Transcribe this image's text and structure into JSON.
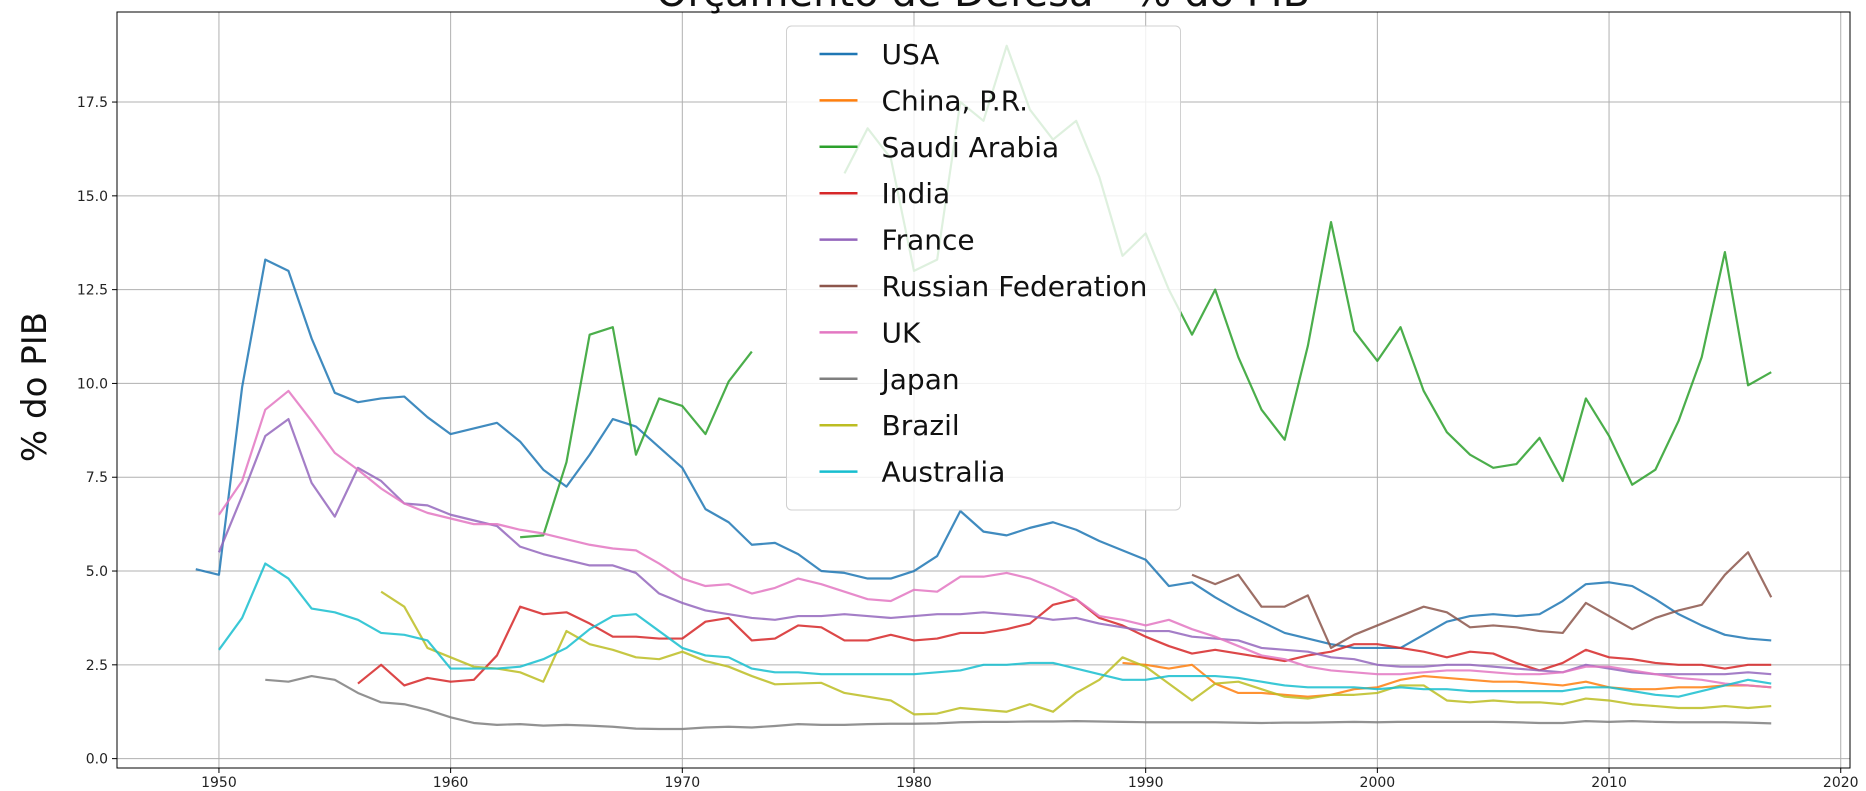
{
  "chart_data": {
    "type": "line",
    "title": "Orçamento de Defesa - % do PIB",
    "ylabel": "% do PIB",
    "grid": true,
    "legend": "upper center",
    "xlim": [
      1945.6,
      2020.4
    ],
    "ylim": [
      -0.25,
      19.9
    ],
    "xticks": [
      1950,
      1960,
      1970,
      1980,
      1990,
      2000,
      2010,
      2020
    ],
    "yticks": [
      {
        "value": 0,
        "label": "0.0"
      },
      {
        "value": 2.5,
        "label": "2.5"
      },
      {
        "value": 5,
        "label": "5.0"
      },
      {
        "value": 7.5,
        "label": "7.5"
      },
      {
        "value": 10,
        "label": "10.0"
      },
      {
        "value": 12.5,
        "label": "12.5"
      },
      {
        "value": 15,
        "label": "15.0"
      },
      {
        "value": 17.5,
        "label": "17.5"
      }
    ],
    "x": [
      1949,
      1950,
      1951,
      1952,
      1953,
      1954,
      1955,
      1956,
      1957,
      1958,
      1959,
      1960,
      1961,
      1962,
      1963,
      1964,
      1965,
      1966,
      1967,
      1968,
      1969,
      1970,
      1971,
      1972,
      1973,
      1974,
      1975,
      1976,
      1977,
      1978,
      1979,
      1980,
      1981,
      1982,
      1983,
      1984,
      1985,
      1986,
      1987,
      1988,
      1989,
      1990,
      1991,
      1992,
      1993,
      1994,
      1995,
      1996,
      1997,
      1998,
      1999,
      2000,
      2001,
      2002,
      2003,
      2004,
      2005,
      2006,
      2007,
      2008,
      2009,
      2010,
      2011,
      2012,
      2013,
      2014,
      2015,
      2016,
      2017
    ],
    "series": [
      {
        "name": "USA",
        "color": "#1f77b4",
        "values": [
          5.05,
          4.9,
          9.9,
          13.3,
          13.0,
          11.2,
          9.75,
          9.5,
          9.6,
          9.65,
          9.1,
          8.65,
          8.8,
          8.95,
          8.45,
          7.7,
          7.25,
          8.1,
          9.05,
          8.85,
          8.3,
          7.75,
          6.65,
          6.3,
          5.7,
          5.75,
          5.45,
          5.0,
          4.95,
          4.8,
          4.8,
          5.0,
          5.4,
          6.6,
          6.05,
          5.95,
          6.15,
          6.3,
          6.1,
          5.8,
          5.55,
          5.3,
          4.6,
          4.7,
          4.3,
          3.95,
          3.65,
          3.35,
          3.2,
          3.05,
          2.95,
          2.95,
          2.95,
          3.3,
          3.65,
          3.8,
          3.85,
          3.8,
          3.85,
          4.2,
          4.65,
          4.7,
          4.6,
          4.25,
          3.85,
          3.55,
          3.3,
          3.2,
          3.15
        ]
      },
      {
        "name": "China, P.R.",
        "color": "#ff7f0e",
        "values": [
          null,
          null,
          null,
          null,
          null,
          null,
          null,
          null,
          null,
          null,
          null,
          null,
          null,
          null,
          null,
          null,
          null,
          null,
          null,
          null,
          null,
          null,
          null,
          null,
          null,
          null,
          null,
          null,
          null,
          null,
          null,
          null,
          null,
          null,
          null,
          null,
          null,
          null,
          null,
          null,
          2.55,
          2.5,
          2.4,
          2.5,
          2.0,
          1.75,
          1.75,
          1.7,
          1.65,
          1.7,
          1.85,
          1.9,
          2.1,
          2.2,
          2.15,
          2.1,
          2.05,
          2.05,
          2.0,
          1.95,
          2.05,
          1.9,
          1.85,
          1.85,
          1.9,
          1.9,
          1.95,
          1.95,
          1.9
        ]
      },
      {
        "name": "Saudi Arabia",
        "color": "#2ca02c",
        "values": [
          null,
          null,
          null,
          null,
          null,
          null,
          null,
          null,
          null,
          null,
          null,
          null,
          null,
          null,
          5.9,
          5.95,
          7.9,
          11.3,
          11.5,
          8.1,
          9.6,
          9.4,
          8.65,
          10.05,
          10.85,
          null,
          null,
          null,
          15.6,
          16.8,
          16.0,
          13.0,
          13.3,
          17.5,
          17.0,
          19.0,
          17.3,
          16.5,
          17.0,
          15.5,
          13.4,
          14.0,
          12.5,
          11.3,
          12.5,
          10.7,
          9.3,
          8.5,
          11.0,
          14.3,
          11.4,
          10.6,
          11.5,
          9.8,
          8.7,
          8.1,
          7.75,
          7.85,
          8.55,
          7.4,
          9.6,
          8.6,
          7.3,
          7.7,
          9.0,
          10.7,
          13.5,
          9.95,
          10.3
        ]
      },
      {
        "name": "India",
        "color": "#d62728",
        "values": [
          null,
          null,
          null,
          null,
          null,
          null,
          null,
          2.0,
          2.5,
          1.95,
          2.15,
          2.05,
          2.1,
          2.75,
          4.05,
          3.85,
          3.9,
          3.6,
          3.25,
          3.25,
          3.2,
          3.2,
          3.65,
          3.75,
          3.15,
          3.2,
          3.55,
          3.5,
          3.15,
          3.15,
          3.3,
          3.15,
          3.2,
          3.35,
          3.35,
          3.45,
          3.6,
          4.1,
          4.25,
          3.75,
          3.55,
          3.25,
          3.0,
          2.8,
          2.9,
          2.8,
          2.7,
          2.6,
          2.75,
          2.85,
          3.05,
          3.05,
          2.95,
          2.85,
          2.7,
          2.85,
          2.8,
          2.55,
          2.35,
          2.55,
          2.9,
          2.7,
          2.65,
          2.55,
          2.5,
          2.5,
          2.4,
          2.5,
          2.5
        ]
      },
      {
        "name": "France",
        "color": "#9467bd",
        "values": [
          null,
          5.5,
          7.0,
          8.6,
          9.05,
          7.35,
          6.45,
          7.75,
          7.4,
          6.8,
          6.75,
          6.5,
          6.35,
          6.2,
          5.65,
          5.45,
          5.3,
          5.15,
          5.15,
          4.95,
          4.4,
          4.15,
          3.95,
          3.85,
          3.75,
          3.7,
          3.8,
          3.8,
          3.85,
          3.8,
          3.75,
          3.8,
          3.85,
          3.85,
          3.9,
          3.85,
          3.8,
          3.7,
          3.75,
          3.6,
          3.5,
          3.4,
          3.4,
          3.25,
          3.2,
          3.15,
          2.95,
          2.9,
          2.85,
          2.7,
          2.65,
          2.5,
          2.45,
          2.45,
          2.5,
          2.5,
          2.45,
          2.4,
          2.35,
          2.3,
          2.5,
          2.4,
          2.3,
          2.25,
          2.25,
          2.25,
          2.25,
          2.3,
          2.25
        ]
      },
      {
        "name": "Russian Federation",
        "color": "#8c564b",
        "values": [
          null,
          null,
          null,
          null,
          null,
          null,
          null,
          null,
          null,
          null,
          null,
          null,
          null,
          null,
          null,
          null,
          null,
          null,
          null,
          null,
          null,
          null,
          null,
          null,
          null,
          null,
          null,
          null,
          null,
          null,
          null,
          null,
          null,
          null,
          null,
          null,
          null,
          null,
          null,
          null,
          null,
          null,
          null,
          4.9,
          4.65,
          4.9,
          4.05,
          4.05,
          4.35,
          2.95,
          3.3,
          3.55,
          3.8,
          4.05,
          3.9,
          3.5,
          3.55,
          3.5,
          3.4,
          3.35,
          4.15,
          3.8,
          3.45,
          3.75,
          3.95,
          4.1,
          4.9,
          5.5,
          4.3
        ]
      },
      {
        "name": "UK",
        "color": "#e377c2",
        "values": [
          null,
          6.5,
          7.4,
          9.3,
          9.8,
          9.0,
          8.15,
          7.7,
          7.2,
          6.8,
          6.55,
          6.4,
          6.25,
          6.25,
          6.1,
          6.0,
          5.85,
          5.7,
          5.6,
          5.55,
          5.2,
          4.8,
          4.6,
          4.65,
          4.4,
          4.55,
          4.8,
          4.65,
          4.45,
          4.25,
          4.2,
          4.5,
          4.45,
          4.85,
          4.85,
          4.95,
          4.8,
          4.55,
          4.25,
          3.8,
          3.7,
          3.55,
          3.7,
          3.45,
          3.25,
          3.0,
          2.75,
          2.65,
          2.45,
          2.35,
          2.3,
          2.25,
          2.25,
          2.3,
          2.35,
          2.35,
          2.3,
          2.25,
          2.25,
          2.3,
          2.45,
          2.45,
          2.35,
          2.25,
          2.15,
          2.1,
          2.0,
          1.95,
          1.9
        ]
      },
      {
        "name": "Japan",
        "color": "#7f7f7f",
        "values": [
          null,
          null,
          null,
          2.1,
          2.05,
          2.2,
          2.1,
          1.75,
          1.5,
          1.45,
          1.3,
          1.1,
          0.95,
          0.9,
          0.92,
          0.88,
          0.9,
          0.88,
          0.85,
          0.8,
          0.79,
          0.79,
          0.83,
          0.85,
          0.83,
          0.87,
          0.92,
          0.9,
          0.9,
          0.92,
          0.93,
          0.93,
          0.94,
          0.97,
          0.98,
          0.98,
          0.99,
          0.99,
          1.0,
          0.99,
          0.98,
          0.97,
          0.97,
          0.97,
          0.97,
          0.96,
          0.95,
          0.96,
          0.96,
          0.97,
          0.98,
          0.97,
          0.98,
          0.98,
          0.98,
          0.98,
          0.98,
          0.97,
          0.95,
          0.95,
          1.0,
          0.98,
          1.0,
          0.98,
          0.97,
          0.97,
          0.97,
          0.96,
          0.94
        ]
      },
      {
        "name": "Brazil",
        "color": "#bcbd22",
        "values": [
          null,
          null,
          null,
          null,
          null,
          null,
          null,
          null,
          4.45,
          4.05,
          2.95,
          2.7,
          2.45,
          2.4,
          2.3,
          2.05,
          3.4,
          3.05,
          2.9,
          2.7,
          2.65,
          2.85,
          2.6,
          2.45,
          2.2,
          1.98,
          2.0,
          2.02,
          1.75,
          1.65,
          1.55,
          1.18,
          1.2,
          1.35,
          1.3,
          1.25,
          1.45,
          1.25,
          1.75,
          2.1,
          2.7,
          2.45,
          2.0,
          1.55,
          2.0,
          2.05,
          1.85,
          1.65,
          1.6,
          1.7,
          1.7,
          1.75,
          1.95,
          1.95,
          1.55,
          1.5,
          1.55,
          1.5,
          1.5,
          1.45,
          1.6,
          1.55,
          1.45,
          1.4,
          1.35,
          1.35,
          1.4,
          1.35,
          1.4
        ]
      },
      {
        "name": "Australia",
        "color": "#17becf",
        "values": [
          null,
          2.9,
          3.75,
          5.2,
          4.8,
          4.0,
          3.9,
          3.7,
          3.35,
          3.3,
          3.15,
          2.4,
          2.4,
          2.4,
          2.45,
          2.65,
          2.95,
          3.45,
          3.8,
          3.85,
          3.4,
          2.95,
          2.75,
          2.7,
          2.4,
          2.3,
          2.3,
          2.25,
          2.25,
          2.25,
          2.25,
          2.25,
          2.3,
          2.35,
          2.5,
          2.5,
          2.55,
          2.55,
          2.4,
          2.25,
          2.1,
          2.1,
          2.2,
          2.2,
          2.2,
          2.15,
          2.05,
          1.95,
          1.9,
          1.9,
          1.9,
          1.85,
          1.9,
          1.85,
          1.85,
          1.8,
          1.8,
          1.8,
          1.8,
          1.8,
          1.9,
          1.9,
          1.8,
          1.7,
          1.65,
          1.8,
          1.95,
          2.1,
          2.0
        ]
      }
    ]
  }
}
